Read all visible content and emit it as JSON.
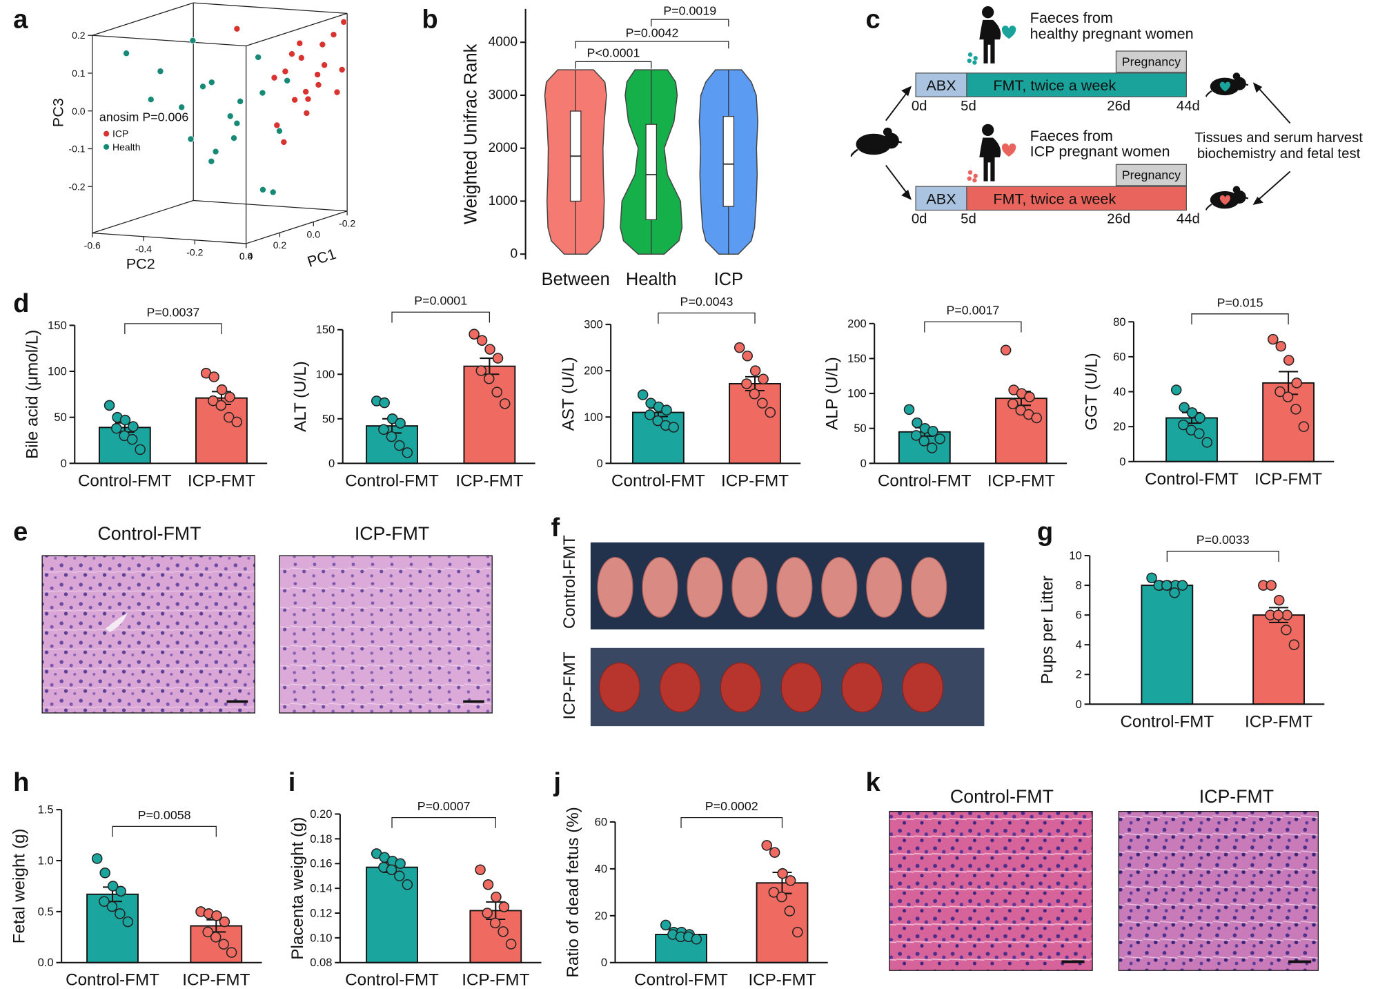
{
  "panel_labels": [
    "a",
    "b",
    "c",
    "d",
    "e",
    "f",
    "g",
    "h",
    "i",
    "j",
    "k"
  ],
  "chart_data": [
    {
      "type": "scatter3d",
      "xlabel": "PC1",
      "zlabel": "PC2",
      "ylabel": "PC3",
      "annotation": "anosim P=0.006",
      "pc1ticks": [
        0.4,
        0.2,
        {
          "value": 0,
          "label": "0.0"
        },
        -0.2
      ],
      "pc2ticks": [
        -0.6,
        -0.4,
        -0.2,
        {
          "value": 0,
          "label": "0.0"
        }
      ],
      "pc3ticks": [
        0.2,
        0.1,
        {
          "value": 0,
          "label": "0.0"
        },
        -0.1,
        -0.2
      ],
      "series": [
        {
          "name": "ICP",
          "color": "#d8332f",
          "pc1": [
            -0.15,
            -0.1,
            -0.05,
            0,
            -0.18,
            -0.12,
            -0.08,
            0.02,
            0.05,
            -0.02,
            -0.16,
            -0.06,
            0.08,
            -0.1,
            -0.14,
            0,
            0.1,
            -0.04,
            -0.2,
            0.15
          ],
          "pc2": [
            -0.02,
            -0.05,
            -0.08,
            -0.03,
            0,
            -0.1,
            -0.01,
            -0.06,
            -0.12,
            -0.04,
            -0.07,
            -0.02,
            -0.09,
            -0.15,
            0,
            -0.11,
            -0.05,
            -0.08,
            -0.02,
            -0.2
          ],
          "pc3": [
            0.15,
            0.05,
            0.1,
            0.02,
            0.18,
            -0.02,
            0.08,
            0,
            0.06,
            -0.04,
            0.12,
            0.03,
            -0.06,
            0.1,
            0,
            0.07,
            -0.1,
            0.14,
            0.05,
            0.2
          ]
        },
        {
          "name": "Health",
          "color": "#168a76",
          "pc1": [
            0.2,
            0.3,
            0.15,
            0.25,
            0.1,
            0.35,
            0.05,
            0.2,
            0.28,
            0.12,
            0.18,
            0.3,
            0.22,
            0.08,
            0.26,
            0.24,
            0.27,
            0.15,
            0.32,
            0.1
          ],
          "pc2": [
            -0.3,
            -0.4,
            -0.2,
            -0.35,
            -0.15,
            -0.5,
            -0.1,
            -0.25,
            -0.45,
            -0.12,
            -0.28,
            -0.2,
            -0.18,
            -0.05,
            -0.3,
            0,
            -0.02,
            -0.38,
            -0.1,
            -0.22
          ],
          "pc3": [
            0.05,
            0.1,
            -0.05,
            0,
            0.12,
            0.15,
            -0.08,
            -0.12,
            0.02,
            0.03,
            -0.15,
            0.08,
            -0.02,
            0.06,
            0.18,
            -0.21,
            -0.2,
            -0.1,
            -0.06,
            0
          ]
        }
      ]
    },
    {
      "type": "violin",
      "ylabel": "Weighted Unifrac Rank",
      "categories": [
        "Between",
        "Health",
        "ICP"
      ],
      "colors": [
        "#f47a72",
        "#15b04a",
        "#5b9cf2"
      ],
      "ylim": [
        -100,
        4630
      ],
      "yticks": [
        0,
        1000,
        2000,
        3000,
        4000
      ],
      "min": [
        0,
        0,
        0
      ],
      "max": [
        3480,
        3480,
        3480
      ],
      "q1": [
        1000,
        650,
        900
      ],
      "median": [
        1850,
        1500,
        1700
      ],
      "q3": [
        2700,
        2450,
        2600
      ],
      "density_levels": [
        0,
        250,
        500,
        1000,
        1500,
        2000,
        2500,
        3000,
        3250,
        3480
      ],
      "density": [
        [
          0.35,
          0.75,
          0.85,
          0.88,
          0.85,
          0.84,
          0.88,
          0.95,
          0.9,
          0.55
        ],
        [
          0.4,
          0.85,
          0.95,
          0.9,
          0.5,
          0.4,
          0.7,
          0.8,
          0.75,
          0.5
        ],
        [
          0.3,
          0.7,
          0.8,
          0.85,
          0.88,
          0.86,
          0.9,
          0.85,
          0.7,
          0.4
        ]
      ],
      "comparisons": [
        {
          "pair": [
            0,
            1
          ],
          "label": "P<0.0001"
        },
        {
          "pair": [
            0,
            2
          ],
          "label": "P=0.0042"
        },
        {
          "pair": [
            1,
            2
          ],
          "label": "P=0.0019"
        }
      ]
    },
    {
      "type": "bar",
      "ylabel": "Bile acid (μmol/L)",
      "categories": [
        "Control-FMT",
        "ICP-FMT"
      ],
      "colors": [
        "#1aa59e",
        "#ef6b61"
      ],
      "values": [
        39,
        71
      ],
      "errors": [
        5,
        7
      ],
      "points": [
        [
          63,
          50,
          47,
          40,
          38,
          30,
          26,
          15
        ],
        [
          98,
          94,
          80,
          72,
          68,
          63,
          50,
          45
        ]
      ],
      "ylim": [
        0,
        150
      ],
      "yticks": [
        0,
        50,
        100,
        150
      ],
      "p_value": "P=0.0037"
    },
    {
      "type": "bar",
      "ylabel": "ALT (U/L)",
      "categories": [
        "Control-FMT",
        "ICP-FMT"
      ],
      "colors": [
        "#1aa59e",
        "#ef6b61"
      ],
      "values": [
        42,
        109
      ],
      "errors": [
        8,
        9
      ],
      "points": [
        [
          70,
          68,
          50,
          45,
          38,
          30,
          20,
          12
        ],
        [
          145,
          138,
          128,
          118,
          104,
          95,
          80,
          67
        ]
      ],
      "ylim": [
        0,
        150
      ],
      "yticks": [
        0,
        50,
        100,
        150
      ],
      "p_value": "P=0.0001"
    },
    {
      "type": "bar",
      "ylabel": "AST (U/L)",
      "categories": [
        "Control-FMT",
        "ICP-FMT"
      ],
      "colors": [
        "#1aa59e",
        "#ef6b61"
      ],
      "values": [
        110,
        172
      ],
      "errors": [
        9,
        15
      ],
      "points": [
        [
          148,
          130,
          122,
          115,
          105,
          92,
          82,
          78
        ],
        [
          250,
          232,
          200,
          182,
          172,
          150,
          130,
          110
        ]
      ],
      "ylim": [
        0,
        300
      ],
      "yticks": [
        0,
        100,
        200,
        300
      ],
      "p_value": "P=0.0043"
    },
    {
      "type": "bar",
      "ylabel": "ALP (U/L)",
      "categories": [
        "Control-FMT",
        "ICP-FMT"
      ],
      "colors": [
        "#1aa59e",
        "#ef6b61"
      ],
      "values": [
        45,
        93
      ],
      "errors": [
        6,
        10
      ],
      "points": [
        [
          77,
          58,
          50,
          46,
          40,
          32,
          22,
          35
        ],
        [
          162,
          105,
          100,
          95,
          85,
          76,
          70,
          65
        ]
      ],
      "ylim": [
        0,
        200
      ],
      "yticks": [
        0,
        50,
        100,
        150,
        200
      ],
      "p_value": "P=0.0017"
    },
    {
      "type": "bar",
      "ylabel": "GGT (U/L)",
      "categories": [
        "Control-FMT",
        "ICP-FMT"
      ],
      "colors": [
        "#1aa59e",
        "#ef6b61"
      ],
      "values": [
        25,
        45
      ],
      "errors": [
        3,
        6.5
      ],
      "points": [
        [
          41,
          31,
          28,
          25,
          21,
          18,
          16,
          11
        ],
        [
          70,
          66,
          58,
          45,
          40,
          37,
          30,
          20
        ]
      ],
      "ylim": [
        0,
        80
      ],
      "yticks": [
        0,
        20,
        40,
        60,
        80
      ],
      "p_value": "P=0.015"
    },
    {
      "type": "bar",
      "ylabel": "Pups per Litter",
      "categories": [
        "Control-FMT",
        "ICP-FMT"
      ],
      "colors": [
        "#1aa59e",
        "#ef6b61"
      ],
      "values": [
        8,
        6
      ],
      "errors": [
        0.2,
        0.5
      ],
      "points": [
        [
          8.5,
          8,
          8,
          8,
          8,
          8,
          7.5,
          8
        ],
        [
          8,
          8,
          7,
          6,
          6,
          6,
          5,
          4
        ]
      ],
      "ylim": [
        0,
        10
      ],
      "yticks": [
        0,
        2,
        4,
        6,
        8,
        10
      ],
      "p_value": "P=0.0033"
    },
    {
      "type": "bar",
      "ylabel": "Fetal weight (g)",
      "categories": [
        "Control-FMT",
        "ICP-FMT"
      ],
      "colors": [
        "#1aa59e",
        "#ef6b61"
      ],
      "values": [
        0.67,
        0.36
      ],
      "errors": [
        0.07,
        0.06
      ],
      "points": [
        [
          1.02,
          0.88,
          0.75,
          0.7,
          0.6,
          0.55,
          0.48,
          0.4
        ],
        [
          0.5,
          0.48,
          0.46,
          0.4,
          0.3,
          0.25,
          0.18,
          0.1
        ]
      ],
      "ylim": [
        0,
        1.5
      ],
      "yticks": [
        {
          "value": 0,
          "label": "0.0"
        },
        0.5,
        {
          "value": 1,
          "label": "1.0"
        },
        1.5
      ],
      "p_value": "P=0.0058"
    },
    {
      "type": "bar",
      "ylabel": "Placenta weight (g)",
      "categories": [
        "Control-FMT",
        "ICP-FMT"
      ],
      "colors": [
        "#1aa59e",
        "#ef6b61"
      ],
      "values": [
        0.157,
        0.122
      ],
      "errors": [
        0.004,
        0.007
      ],
      "points": [
        [
          0.168,
          0.165,
          0.162,
          0.16,
          0.157,
          0.155,
          0.15,
          0.143
        ],
        [
          0.155,
          0.143,
          0.133,
          0.125,
          0.12,
          0.112,
          0.105,
          0.095
        ]
      ],
      "ylim": [
        0.08,
        0.2
      ],
      "yticks": [
        0.08,
        {
          "value": 0.1,
          "label": "0.10"
        },
        0.12,
        0.14,
        0.16,
        0.18,
        {
          "value": 0.2,
          "label": "0.20"
        }
      ],
      "p_value": "P=0.0007"
    },
    {
      "type": "bar",
      "ylabel": "Ratio of dead fetus (%)",
      "categories": [
        "Control-FMT",
        "ICP-FMT"
      ],
      "colors": [
        "#1aa59e",
        "#ef6b61"
      ],
      "values": [
        12,
        34
      ],
      "errors": [
        1,
        4.5
      ],
      "points": [
        [
          16,
          13,
          13,
          12,
          12,
          11,
          11,
          10
        ],
        [
          50,
          47,
          38,
          35,
          30,
          28,
          22,
          13
        ]
      ],
      "ylim": [
        0,
        60
      ],
      "yticks": [
        0,
        20,
        40,
        60
      ],
      "p_value": "P=0.0002"
    }
  ],
  "diagram": {
    "donor_healthy": [
      "Faeces from",
      "healthy pregnant women"
    ],
    "donor_icp": [
      "Faeces from",
      "ICP pregnant women"
    ],
    "pregnancy": "Pregnancy",
    "abx": "ABX",
    "fmt": "FMT, twice a week",
    "days": [
      "0d",
      "5d",
      "26d",
      "44d"
    ],
    "harvest": [
      "Tissues and serum harvest",
      "biochemistry and fetal test"
    ]
  },
  "images": {
    "e": [
      "Control-FMT",
      "ICP-FMT"
    ],
    "f": [
      "Control-FMT",
      "ICP-FMT"
    ],
    "k": [
      "Control-FMT",
      "ICP-FMT"
    ]
  }
}
